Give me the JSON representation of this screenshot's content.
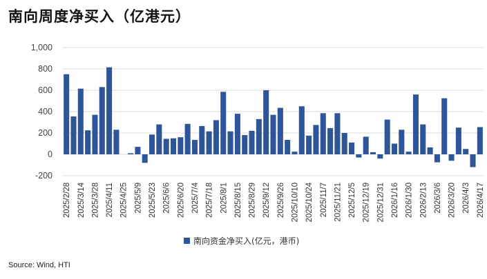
{
  "title": "南向周度净买入（亿港元）",
  "source": "Source: Wind, HTI",
  "chart_data": {
    "type": "bar",
    "ylim": [
      -200,
      1000
    ],
    "yticks": [
      "-200",
      "0",
      "200",
      "400",
      "600",
      "800",
      "1,000"
    ],
    "ytick_values": [
      -200,
      0,
      200,
      400,
      600,
      800,
      1000
    ],
    "grid": true,
    "legend_position": "bottom-center",
    "bar_color": "#2e5597",
    "x_tick_labels": [
      "2025/2/28",
      "2025/3/14",
      "2025/3/28",
      "2025/4/11",
      "2025/4/25",
      "2025/5/9",
      "2025/5/23",
      "2025/6/6",
      "2025/6/20",
      "2025/7/4",
      "2025/7/18",
      "2025/8/1",
      "2025/8/15",
      "2025/8/29",
      "2025/9/12",
      "2025/9/26",
      "2025/10/10",
      "2025/10/24",
      "2025/11/7",
      "2025/11/21",
      "2025/12/5",
      "2025/12/19",
      "2025/12/31",
      "2026/1/16",
      "2026/1/30",
      "2026/2/13",
      "2026/3/6",
      "2026/3/20",
      "2026/4/3",
      "2026/4/17"
    ],
    "series": [
      {
        "name": "南向资金净买入(亿元，港币)",
        "values": [
          750,
          355,
          615,
          225,
          370,
          630,
          815,
          230,
          0,
          10,
          70,
          -80,
          185,
          280,
          145,
          150,
          160,
          285,
          135,
          265,
          215,
          320,
          585,
          215,
          380,
          180,
          220,
          330,
          600,
          370,
          435,
          135,
          25,
          450,
          175,
          275,
          385,
          245,
          385,
          200,
          110,
          -30,
          165,
          20,
          -40,
          325,
          100,
          230,
          25,
          560,
          280,
          65,
          -75,
          525,
          -60,
          250,
          50,
          -120,
          255
        ]
      }
    ]
  }
}
